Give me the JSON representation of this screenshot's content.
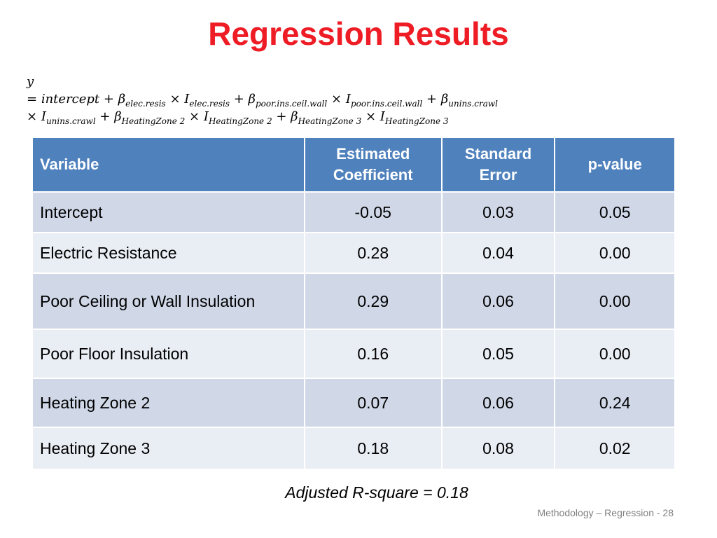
{
  "title": "Regression Results",
  "formula": {
    "line1": "y",
    "eq": "=",
    "intercept": "intercept",
    "plus": "+",
    "times": "×",
    "beta": "β",
    "ind": "I",
    "elec": "elec.resis",
    "poor": "poor.ins.ceil.wall",
    "unins": "unins.crawl",
    "hz2": "HeatingZone 2",
    "hz3": "HeatingZone 3"
  },
  "table": {
    "headers": [
      "Variable",
      "Estimated Coefficient",
      "Standard Error",
      "p-value"
    ],
    "rows": [
      {
        "variable": "Intercept",
        "coef": "-0.05",
        "se": "0.03",
        "p": "0.05"
      },
      {
        "variable": "Electric Resistance",
        "coef": "0.28",
        "se": "0.04",
        "p": "0.00"
      },
      {
        "variable": "Poor Ceiling or Wall Insulation",
        "coef": "0.29",
        "se": "0.06",
        "p": "0.00"
      },
      {
        "variable": "Poor Floor Insulation",
        "coef": "0.16",
        "se": "0.05",
        "p": "0.00"
      },
      {
        "variable": "Heating Zone 2",
        "coef": "0.07",
        "se": "0.06",
        "p": "0.24"
      },
      {
        "variable": "Heating Zone 3",
        "coef": "0.18",
        "se": "0.08",
        "p": "0.02"
      }
    ]
  },
  "adjusted_r_square": "Adjusted R-square = 0.18",
  "footer": "Methodology – Regression - 28",
  "colors": {
    "title": "#ee1c25",
    "header_bg": "#4f81bd",
    "row_dark": "#d0d8e8",
    "row_light": "#e9edf4"
  }
}
